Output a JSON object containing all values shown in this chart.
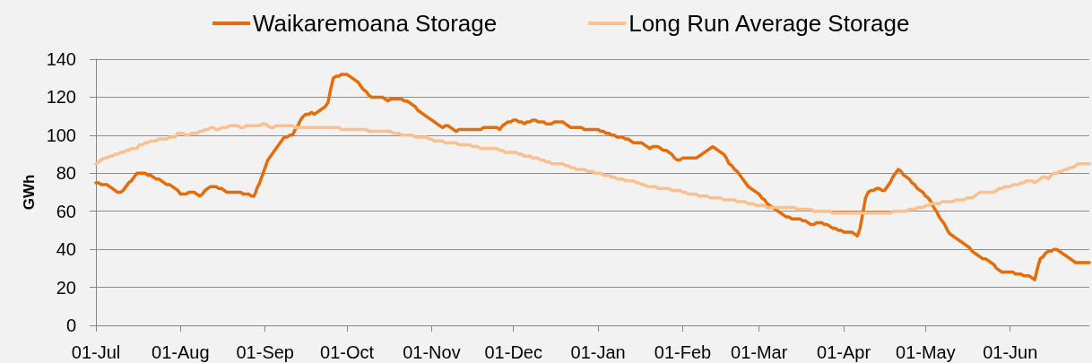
{
  "chart_data": {
    "type": "line",
    "ylabel": "GWh",
    "legend": "top",
    "grid": "y",
    "marker": "none",
    "line_style": "solid",
    "categories": [
      "01-Jul",
      null,
      null,
      null,
      null,
      null,
      null,
      null,
      null,
      null,
      null,
      null,
      null,
      null,
      null,
      null,
      null,
      null,
      null,
      null,
      null,
      null,
      null,
      null,
      null,
      null,
      null,
      null,
      null,
      null,
      null,
      "01-Aug",
      null,
      null,
      null,
      null,
      null,
      null,
      null,
      null,
      null,
      null,
      null,
      null,
      null,
      null,
      null,
      null,
      null,
      null,
      null,
      null,
      null,
      null,
      null,
      null,
      null,
      null,
      null,
      null,
      null,
      null,
      "01-Sep",
      null,
      null,
      null,
      null,
      null,
      null,
      null,
      null,
      null,
      null,
      null,
      null,
      null,
      null,
      null,
      null,
      null,
      null,
      null,
      null,
      null,
      null,
      null,
      null,
      null,
      null,
      null,
      null,
      null,
      "01-Oct",
      null,
      null,
      null,
      null,
      null,
      null,
      null,
      null,
      null,
      null,
      null,
      null,
      null,
      null,
      null,
      null,
      null,
      null,
      null,
      null,
      null,
      null,
      null,
      null,
      null,
      null,
      null,
      null,
      null,
      null,
      "01-Nov",
      null,
      null,
      null,
      null,
      null,
      null,
      null,
      null,
      null,
      null,
      null,
      null,
      null,
      null,
      null,
      null,
      null,
      null,
      null,
      null,
      null,
      null,
      null,
      null,
      null,
      null,
      null,
      null,
      null,
      "01-Dec",
      null,
      null,
      null,
      null,
      null,
      null,
      null,
      null,
      null,
      null,
      null,
      null,
      null,
      null,
      null,
      null,
      null,
      null,
      null,
      null,
      null,
      null,
      null,
      null,
      null,
      null,
      null,
      null,
      null,
      null,
      "01-Jan",
      null,
      null,
      null,
      null,
      null,
      null,
      null,
      null,
      null,
      null,
      null,
      null,
      null,
      null,
      null,
      null,
      null,
      null,
      null,
      null,
      null,
      null,
      null,
      null,
      null,
      null,
      null,
      null,
      null,
      null,
      "01-Feb",
      null,
      null,
      null,
      null,
      null,
      null,
      null,
      null,
      null,
      null,
      null,
      null,
      null,
      null,
      null,
      null,
      null,
      null,
      null,
      null,
      null,
      null,
      null,
      null,
      null,
      null,
      null,
      "01-Mar",
      null,
      null,
      null,
      null,
      null,
      null,
      null,
      null,
      null,
      null,
      null,
      null,
      null,
      null,
      null,
      null,
      null,
      null,
      null,
      null,
      null,
      null,
      null,
      null,
      null,
      null,
      null,
      null,
      null,
      null,
      "01-Apr",
      null,
      null,
      null,
      null,
      null,
      null,
      null,
      null,
      null,
      null,
      null,
      null,
      null,
      null,
      null,
      null,
      null,
      null,
      null,
      null,
      null,
      null,
      null,
      null,
      null,
      null,
      null,
      null,
      null,
      "01-May",
      null,
      null,
      null,
      null,
      null,
      null,
      null,
      null,
      null,
      null,
      null,
      null,
      null,
      null,
      null,
      null,
      null,
      null,
      null,
      null,
      null,
      null,
      null,
      null,
      null,
      null,
      null,
      null,
      null,
      null,
      "01-Jun",
      null,
      null,
      null,
      null,
      null,
      null,
      null,
      null,
      null,
      null,
      null,
      null,
      null,
      null,
      null,
      null,
      null,
      null,
      null,
      null,
      null,
      null,
      null,
      null,
      null,
      null,
      null,
      null,
      null
    ],
    "ylim": [
      0,
      140
    ],
    "yticks": [
      0,
      20,
      40,
      60,
      80,
      100,
      120,
      140
    ],
    "series": [
      {
        "name": "Waikaremoana Storage",
        "color": "#e46c0a",
        "values": [
          75,
          75,
          74,
          74,
          74,
          73,
          72,
          71,
          70,
          70,
          71,
          73,
          75,
          76,
          78,
          80,
          80,
          80,
          80,
          79,
          79,
          78,
          77,
          77,
          76,
          75,
          74,
          74,
          73,
          72,
          71,
          69,
          69,
          69,
          70,
          70,
          70,
          69,
          68,
          69,
          71,
          72,
          73,
          73,
          73,
          72,
          72,
          71,
          70,
          70,
          70,
          70,
          70,
          70,
          69,
          69,
          69,
          68,
          68,
          72,
          75,
          79,
          83,
          87,
          89,
          91,
          93,
          95,
          97,
          99,
          99,
          100,
          100,
          103,
          105,
          108,
          110,
          111,
          111,
          112,
          111,
          112,
          113,
          114,
          115,
          117,
          124,
          130,
          131,
          131,
          132,
          132,
          132,
          131,
          130,
          129,
          128,
          126,
          124,
          123,
          121,
          120,
          120,
          120,
          120,
          120,
          119,
          118,
          119,
          119,
          119,
          119,
          119,
          118,
          118,
          117,
          116,
          115,
          113,
          112,
          111,
          110,
          109,
          108,
          107,
          106,
          105,
          104,
          105,
          105,
          104,
          103,
          102,
          103,
          103,
          103,
          103,
          103,
          103,
          103,
          103,
          103,
          104,
          104,
          104,
          104,
          104,
          104,
          103,
          105,
          106,
          107,
          107,
          108,
          108,
          107,
          107,
          106,
          107,
          107,
          108,
          108,
          107,
          107,
          107,
          106,
          106,
          106,
          107,
          107,
          107,
          107,
          106,
          105,
          104,
          104,
          104,
          104,
          104,
          103,
          103,
          103,
          103,
          103,
          103,
          102,
          102,
          101,
          101,
          100,
          100,
          99,
          99,
          99,
          98,
          98,
          97,
          96,
          96,
          96,
          96,
          95,
          94,
          93,
          94,
          94,
          94,
          93,
          92,
          92,
          91,
          90,
          88,
          87,
          87,
          88,
          88,
          88,
          88,
          88,
          88,
          89,
          90,
          91,
          92,
          93,
          94,
          93,
          92,
          91,
          90,
          88,
          85,
          84,
          82,
          81,
          79,
          77,
          75,
          73,
          72,
          71,
          70,
          69,
          67,
          66,
          64,
          63,
          62,
          61,
          60,
          59,
          58,
          57,
          57,
          56,
          56,
          56,
          56,
          55,
          55,
          54,
          53,
          53,
          54,
          54,
          54,
          53,
          53,
          52,
          51,
          51,
          50,
          50,
          49,
          49,
          49,
          49,
          48,
          47,
          51,
          59,
          67,
          70,
          71,
          71,
          72,
          72,
          71,
          71,
          73,
          75,
          78,
          80,
          82,
          81,
          79,
          78,
          77,
          75,
          74,
          72,
          71,
          70,
          68,
          67,
          65,
          62,
          60,
          57,
          55,
          53,
          50,
          48,
          47,
          46,
          45,
          44,
          43,
          42,
          41,
          39,
          38,
          37,
          36,
          35,
          35,
          34,
          33,
          32,
          30,
          29,
          28,
          28,
          28,
          28,
          28,
          27,
          27,
          27,
          26,
          26,
          26,
          25,
          24,
          30,
          35,
          36,
          38,
          39,
          39,
          40,
          40,
          39,
          38,
          37,
          36,
          35,
          34,
          33,
          33,
          33,
          33,
          33,
          33
        ]
      },
      {
        "name": "Long Run Average Storage",
        "color": "#fac090",
        "values": [
          85,
          86,
          87,
          88,
          88,
          89,
          89,
          90,
          90,
          91,
          91,
          92,
          92,
          93,
          93,
          93,
          95,
          95,
          96,
          96,
          97,
          97,
          97,
          98,
          98,
          98,
          98,
          99,
          99,
          99,
          101,
          101,
          101,
          100,
          100,
          101,
          101,
          101,
          102,
          102,
          103,
          103,
          104,
          104,
          103,
          103,
          104,
          104,
          104,
          105,
          105,
          105,
          105,
          104,
          104,
          105,
          105,
          105,
          105,
          105,
          105,
          106,
          106,
          105,
          104,
          104,
          105,
          105,
          105,
          105,
          105,
          105,
          105,
          104,
          104,
          104,
          104,
          104,
          104,
          104,
          104,
          104,
          104,
          104,
          104,
          104,
          104,
          104,
          104,
          104,
          103,
          103,
          103,
          103,
          103,
          103,
          103,
          103,
          103,
          103,
          102,
          102,
          102,
          102,
          102,
          102,
          102,
          102,
          102,
          101,
          101,
          101,
          100,
          100,
          100,
          100,
          100,
          99,
          99,
          99,
          99,
          99,
          98,
          98,
          97,
          97,
          97,
          97,
          96,
          96,
          96,
          96,
          96,
          95,
          95,
          95,
          95,
          95,
          94,
          94,
          94,
          93,
          93,
          93,
          93,
          93,
          93,
          93,
          92,
          92,
          91,
          91,
          91,
          91,
          91,
          90,
          90,
          89,
          89,
          89,
          88,
          88,
          88,
          87,
          87,
          86,
          86,
          85,
          85,
          85,
          85,
          85,
          84,
          84,
          83,
          83,
          82,
          82,
          82,
          82,
          81,
          81,
          81,
          80,
          80,
          80,
          79,
          79,
          79,
          78,
          78,
          77,
          77,
          77,
          76,
          76,
          76,
          76,
          75,
          75,
          74,
          74,
          73,
          73,
          73,
          73,
          72,
          72,
          72,
          72,
          72,
          71,
          71,
          71,
          71,
          70,
          70,
          69,
          69,
          69,
          69,
          68,
          68,
          68,
          68,
          67,
          67,
          67,
          67,
          67,
          66,
          66,
          66,
          66,
          66,
          65,
          65,
          65,
          65,
          64,
          64,
          64,
          63,
          63,
          63,
          63,
          62,
          62,
          62,
          62,
          62,
          62,
          62,
          62,
          62,
          62,
          62,
          61,
          61,
          61,
          61,
          61,
          61,
          60,
          60,
          60,
          60,
          60,
          60,
          60,
          59,
          59,
          59,
          59,
          59,
          59,
          59,
          59,
          59,
          59,
          59,
          59,
          59,
          59,
          59,
          59,
          59,
          59,
          59,
          59,
          59,
          59,
          60,
          60,
          60,
          60,
          60,
          60,
          61,
          61,
          61,
          62,
          62,
          62,
          63,
          63,
          64,
          64,
          64,
          64,
          65,
          65,
          65,
          65,
          65,
          66,
          66,
          66,
          66,
          67,
          67,
          67,
          68,
          69,
          70,
          70,
          70,
          70,
          70,
          70,
          71,
          72,
          72,
          73,
          73,
          73,
          74,
          74,
          74,
          75,
          75,
          76,
          76,
          76,
          75,
          76,
          77,
          78,
          78,
          77,
          79,
          80,
          80,
          81,
          81,
          82,
          82,
          83,
          83,
          84,
          85,
          85,
          85,
          85,
          85
        ]
      }
    ]
  }
}
